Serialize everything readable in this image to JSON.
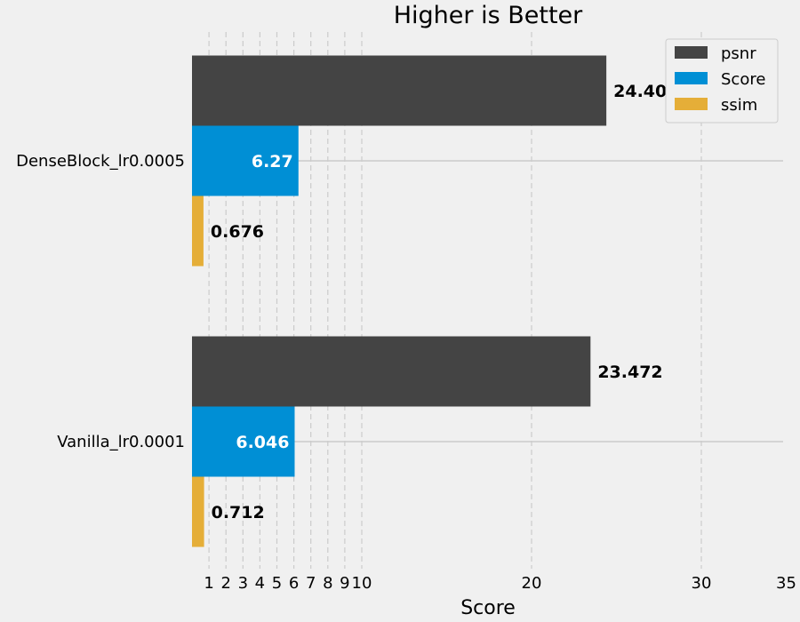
{
  "chart_data": {
    "type": "bar",
    "orientation": "horizontal",
    "title": "Higher is Better",
    "xlabel": "Score",
    "ylabel": "",
    "xlim": [
      0,
      35
    ],
    "x_ticks": [
      1,
      2,
      3,
      4,
      5,
      6,
      7,
      8,
      9,
      10,
      20,
      30,
      35
    ],
    "grid": true,
    "legend_position": "top-right",
    "categories": [
      "DenseBlock_lr0.0005",
      "Vanilla_lr0.0001"
    ],
    "series": [
      {
        "name": "psnr",
        "color": "#444444",
        "label_color": "#000000",
        "values": [
          24.405,
          23.472
        ]
      },
      {
        "name": "Score",
        "color": "#008fd5",
        "label_color": "#ffffff",
        "values": [
          6.27,
          6.046
        ]
      },
      {
        "name": "ssim",
        "color": "#e5ae38",
        "label_color": "#000000",
        "values": [
          0.676,
          0.712
        ]
      }
    ]
  }
}
